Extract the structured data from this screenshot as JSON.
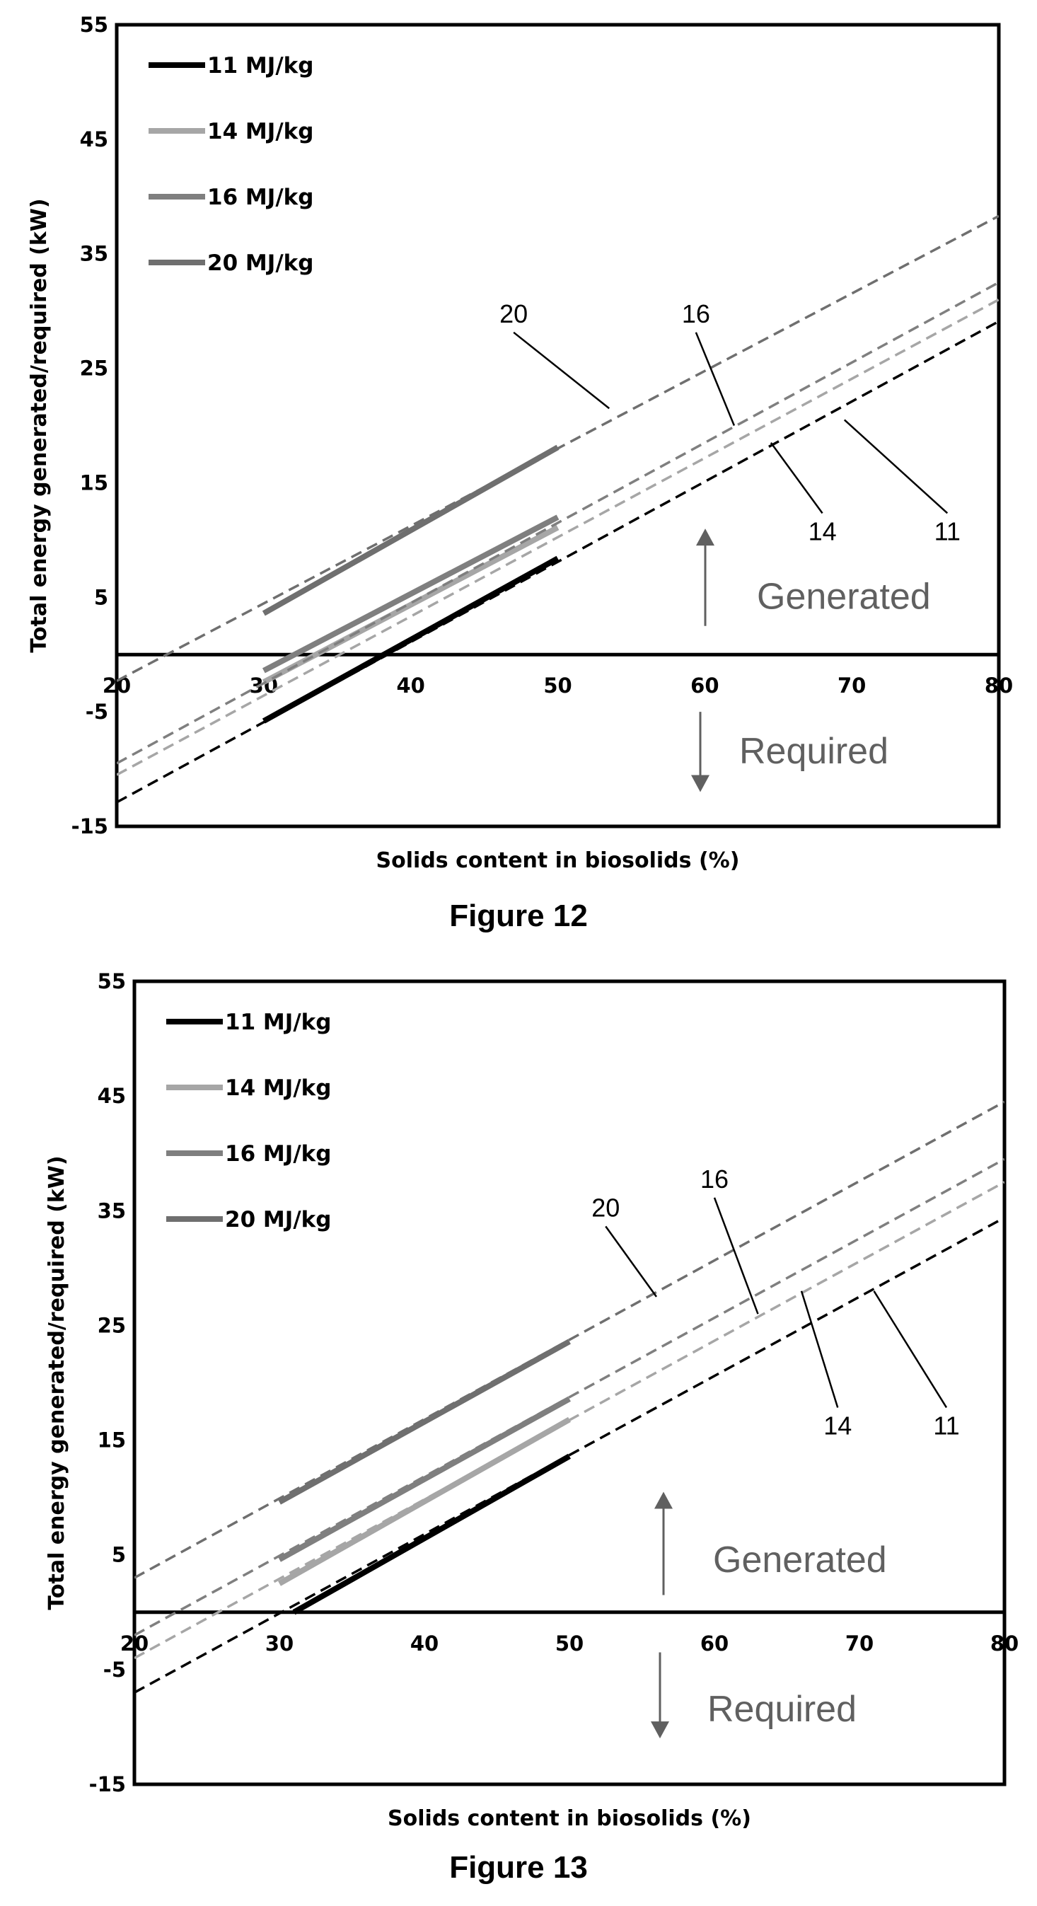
{
  "chart_data": [
    {
      "type": "line",
      "title": "",
      "caption": "Figure 12",
      "xlabel": "Solids content in biosolids (%)",
      "ylabel": "Total energy generated/required (kW)",
      "xlim": [
        20,
        80
      ],
      "ylim": [
        -15,
        55
      ],
      "xticks": [
        "20",
        "30",
        "40",
        "50",
        "60",
        "70",
        "80"
      ],
      "yticks": [
        "55",
        "45",
        "35",
        "25",
        "15",
        "5",
        "-5",
        "-15"
      ],
      "legend_position": "top-left",
      "grid": false,
      "series": [
        {
          "name": "11 MJ/kg",
          "color": "#000000",
          "solid": [
            [
              30,
              -5.8
            ],
            [
              50,
              8.4
            ]
          ],
          "dashed": [
            [
              20,
              -12.9
            ],
            [
              80,
              29.1
            ]
          ]
        },
        {
          "name": "14 MJ/kg",
          "color": "#a6a6a6",
          "solid": [
            [
              30,
              -2.4
            ],
            [
              50,
              11.1
            ]
          ],
          "dashed": [
            [
              20,
              -10.5
            ],
            [
              80,
              31.0
            ]
          ]
        },
        {
          "name": "16 MJ/kg",
          "color": "#7f7f7f",
          "solid": [
            [
              30,
              -1.4
            ],
            [
              50,
              12.0
            ]
          ],
          "dashed": [
            [
              20,
              -9.5
            ],
            [
              80,
              32.5
            ]
          ]
        },
        {
          "name": "20 MJ/kg",
          "color": "#6f6f6f",
          "solid": [
            [
              30,
              3.6
            ],
            [
              50,
              18.1
            ]
          ],
          "dashed": [
            [
              20,
              -2.3
            ],
            [
              80,
              38.3
            ]
          ]
        }
      ],
      "annotations": [
        {
          "text": "20",
          "label_at": [
            47,
            29
          ],
          "point_at": [
            53.5,
            21.5
          ]
        },
        {
          "text": "16",
          "label_at": [
            59.4,
            29
          ],
          "point_at": [
            62,
            20
          ]
        },
        {
          "text": "14",
          "label_at": [
            68,
            10
          ],
          "point_at": [
            64.5,
            18.5
          ]
        },
        {
          "text": "11",
          "label_at": [
            76.5,
            10
          ],
          "point_at": [
            69.5,
            20.5
          ]
        }
      ],
      "generated_label": "Generated",
      "required_label": "Required"
    },
    {
      "type": "line",
      "title": "",
      "caption": "Figure 13",
      "xlabel": "Solids content in biosolids (%)",
      "ylabel": "Total energy generated/required (kW)",
      "xlim": [
        20,
        80
      ],
      "ylim": [
        -15,
        55
      ],
      "xticks": [
        "20",
        "30",
        "40",
        "50",
        "60",
        "70",
        "80"
      ],
      "yticks": [
        "55",
        "45",
        "35",
        "25",
        "15",
        "5",
        "-5",
        "-15"
      ],
      "legend_position": "top-left",
      "grid": false,
      "series": [
        {
          "name": "11 MJ/kg",
          "color": "#000000",
          "solid": [
            [
              31,
              0
            ],
            [
              50,
              13.6
            ]
          ],
          "dashed": [
            [
              20,
              -7.0
            ],
            [
              80,
              34.4
            ]
          ]
        },
        {
          "name": "14 MJ/kg",
          "color": "#a6a6a6",
          "solid": [
            [
              30,
              2.5
            ],
            [
              50,
              16.8
            ]
          ],
          "dashed": [
            [
              20,
              -4.0
            ],
            [
              80,
              37.5
            ]
          ]
        },
        {
          "name": "16 MJ/kg",
          "color": "#7f7f7f",
          "solid": [
            [
              30,
              4.6
            ],
            [
              50,
              18.6
            ]
          ],
          "dashed": [
            [
              20,
              -2.0
            ],
            [
              80,
              39.5
            ]
          ]
        },
        {
          "name": "20 MJ/kg",
          "color": "#6f6f6f",
          "solid": [
            [
              30,
              9.6
            ],
            [
              50,
              23.6
            ]
          ],
          "dashed": [
            [
              20,
              3.0
            ],
            [
              80,
              44.5
            ]
          ]
        }
      ],
      "annotations": [
        {
          "text": "20",
          "label_at": [
            52.5,
            34.5
          ],
          "point_at": [
            56,
            27.5
          ]
        },
        {
          "text": "16",
          "label_at": [
            60,
            37
          ],
          "point_at": [
            63,
            26
          ]
        },
        {
          "text": "14",
          "label_at": [
            68.5,
            15.5
          ],
          "point_at": [
            66,
            28
          ]
        },
        {
          "text": "11",
          "label_at": [
            76,
            15.5
          ],
          "point_at": [
            71,
            28
          ]
        }
      ],
      "generated_label": "Generated",
      "required_label": "Required"
    }
  ]
}
